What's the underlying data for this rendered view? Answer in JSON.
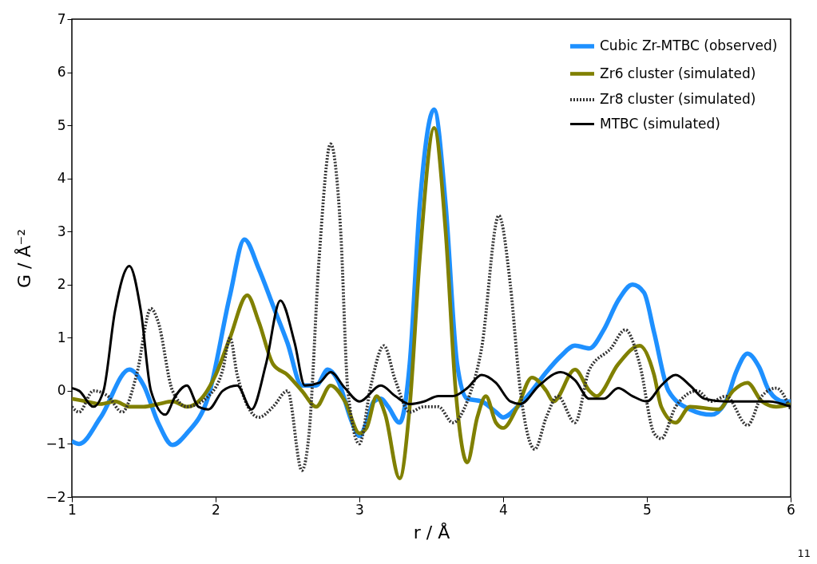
{
  "chart_data": {
    "type": "line",
    "xlabel": "r / Å",
    "ylabel": "G / Å⁻²",
    "xlim": [
      1,
      6
    ],
    "xticks": [
      1,
      2,
      3,
      4,
      5,
      6
    ],
    "ylim": [
      -2,
      7
    ],
    "yticks": [
      -2,
      -1,
      0,
      1,
      2,
      3,
      4,
      5,
      6,
      7
    ],
    "grid": false,
    "legend": "top right",
    "annotations": [
      "11"
    ],
    "series": [
      {
        "name": "Cubic Zr-MTBC (observed)",
        "color": "#1e90ff",
        "line_style": "solid",
        "x": [
          1.0,
          1.05,
          1.2,
          1.4,
          1.5,
          1.6,
          1.7,
          1.8,
          1.95,
          2.1,
          2.2,
          2.3,
          2.4,
          2.5,
          2.6,
          2.7,
          2.78,
          2.85,
          2.95,
          3.0,
          3.05,
          3.1,
          3.15,
          3.2,
          3.28,
          3.35,
          3.42,
          3.52,
          3.6,
          3.68,
          3.75,
          3.85,
          3.95,
          4.0,
          4.1,
          4.2,
          4.3,
          4.4,
          4.5,
          4.6,
          4.7,
          4.8,
          4.9,
          4.98,
          5.05,
          5.15,
          5.3,
          5.45,
          5.55,
          5.62,
          5.7,
          5.78,
          5.85,
          5.95,
          6.0
        ],
        "values": [
          -0.95,
          -1.0,
          -0.5,
          0.4,
          0.1,
          -0.6,
          -1.02,
          -0.8,
          -0.1,
          1.8,
          2.85,
          2.3,
          1.6,
          0.9,
          0.1,
          0.1,
          0.4,
          0.2,
          -0.6,
          -0.85,
          -0.6,
          -0.2,
          -0.15,
          -0.3,
          -0.6,
          0.5,
          3.5,
          5.3,
          3.5,
          0.5,
          -0.15,
          -0.2,
          -0.4,
          -0.5,
          -0.3,
          0.0,
          0.35,
          0.65,
          0.85,
          0.8,
          1.15,
          1.7,
          2.0,
          1.85,
          1.1,
          0.0,
          -0.35,
          -0.45,
          -0.2,
          0.35,
          0.7,
          0.45,
          0.0,
          -0.2,
          -0.2
        ]
      },
      {
        "name": "Zr6 cluster (simulated)",
        "color": "#808000",
        "line_style": "solid",
        "x": [
          1.0,
          1.1,
          1.2,
          1.3,
          1.4,
          1.5,
          1.6,
          1.7,
          1.8,
          1.9,
          2.0,
          2.1,
          2.22,
          2.3,
          2.4,
          2.5,
          2.6,
          2.7,
          2.8,
          2.9,
          3.0,
          3.05,
          3.12,
          3.18,
          3.28,
          3.35,
          3.42,
          3.52,
          3.6,
          3.67,
          3.75,
          3.82,
          3.88,
          3.95,
          4.0,
          4.1,
          4.2,
          4.3,
          4.35,
          4.5,
          4.6,
          4.65,
          4.8,
          4.95,
          5.05,
          5.1,
          5.2,
          5.3,
          5.5,
          5.6,
          5.7,
          5.8,
          5.9,
          6.0
        ],
        "values": [
          -0.15,
          -0.2,
          -0.25,
          -0.2,
          -0.3,
          -0.3,
          -0.25,
          -0.2,
          -0.3,
          -0.15,
          0.3,
          1.0,
          1.8,
          1.3,
          0.5,
          0.3,
          0.0,
          -0.3,
          0.1,
          -0.2,
          -0.8,
          -0.7,
          -0.1,
          -0.45,
          -1.65,
          -0.3,
          2.5,
          4.95,
          3.0,
          0.0,
          -1.35,
          -0.5,
          -0.1,
          -0.6,
          -0.7,
          -0.3,
          0.25,
          0.0,
          -0.2,
          0.4,
          0.0,
          -0.1,
          0.5,
          0.85,
          0.3,
          -0.3,
          -0.6,
          -0.3,
          -0.35,
          0.0,
          0.15,
          -0.2,
          -0.3,
          -0.25
        ]
      },
      {
        "name": "Zr8 cluster (simulated)",
        "color": "#333333",
        "line_style": "dotted",
        "x": [
          1.0,
          1.05,
          1.15,
          1.25,
          1.35,
          1.45,
          1.55,
          1.6,
          1.7,
          1.8,
          1.95,
          2.05,
          2.1,
          2.15,
          2.3,
          2.4,
          2.5,
          2.6,
          2.65,
          2.72,
          2.8,
          2.87,
          2.92,
          3.0,
          3.08,
          3.17,
          3.25,
          3.35,
          3.45,
          3.55,
          3.65,
          3.75,
          3.85,
          3.97,
          4.05,
          4.12,
          4.22,
          4.3,
          4.38,
          4.5,
          4.6,
          4.75,
          4.85,
          4.95,
          5.05,
          5.1,
          5.2,
          5.35,
          5.45,
          5.55,
          5.7,
          5.8,
          5.9,
          6.0
        ],
        "values": [
          -0.3,
          -0.4,
          0.0,
          -0.1,
          -0.4,
          0.3,
          1.55,
          1.3,
          0.0,
          -0.3,
          -0.1,
          0.4,
          1.0,
          0.3,
          -0.5,
          -0.3,
          0.0,
          -1.5,
          -0.8,
          2.5,
          4.65,
          3.0,
          0.0,
          -1.0,
          0.1,
          0.85,
          0.2,
          -0.4,
          -0.3,
          -0.3,
          -0.6,
          -0.2,
          0.8,
          3.3,
          2.0,
          0.0,
          -1.1,
          -0.5,
          -0.1,
          -0.6,
          0.4,
          0.8,
          1.15,
          0.5,
          -0.8,
          -0.9,
          -0.3,
          0.0,
          -0.2,
          -0.1,
          -0.65,
          -0.1,
          0.05,
          -0.35
        ]
      },
      {
        "name": "MTBC (simulated)",
        "color": "#000000",
        "line_style": "solid",
        "x": [
          1.0,
          1.05,
          1.15,
          1.22,
          1.3,
          1.4,
          1.48,
          1.55,
          1.65,
          1.72,
          1.8,
          1.88,
          1.95,
          2.05,
          2.15,
          2.25,
          2.35,
          2.45,
          2.55,
          2.62,
          2.72,
          2.8,
          2.9,
          3.0,
          3.15,
          3.25,
          3.35,
          3.45,
          3.55,
          3.65,
          3.75,
          3.85,
          3.95,
          4.05,
          4.12,
          4.25,
          4.4,
          4.5,
          4.6,
          4.7,
          4.8,
          4.9,
          5.0,
          5.1,
          5.2,
          5.3,
          5.4,
          5.55,
          5.7,
          5.85,
          6.0
        ],
        "values": [
          0.05,
          0.0,
          -0.3,
          0.0,
          1.5,
          2.35,
          1.5,
          0.0,
          -0.45,
          -0.1,
          0.1,
          -0.3,
          -0.35,
          0.0,
          0.1,
          -0.35,
          0.5,
          1.7,
          0.9,
          0.1,
          0.15,
          0.35,
          0.05,
          -0.2,
          0.1,
          -0.1,
          -0.25,
          -0.2,
          -0.1,
          -0.1,
          0.05,
          0.3,
          0.15,
          -0.2,
          -0.25,
          0.1,
          0.35,
          0.2,
          -0.15,
          -0.15,
          0.05,
          -0.1,
          -0.2,
          0.1,
          0.3,
          0.1,
          -0.15,
          -0.2,
          -0.2,
          -0.2,
          -0.3
        ]
      }
    ]
  }
}
